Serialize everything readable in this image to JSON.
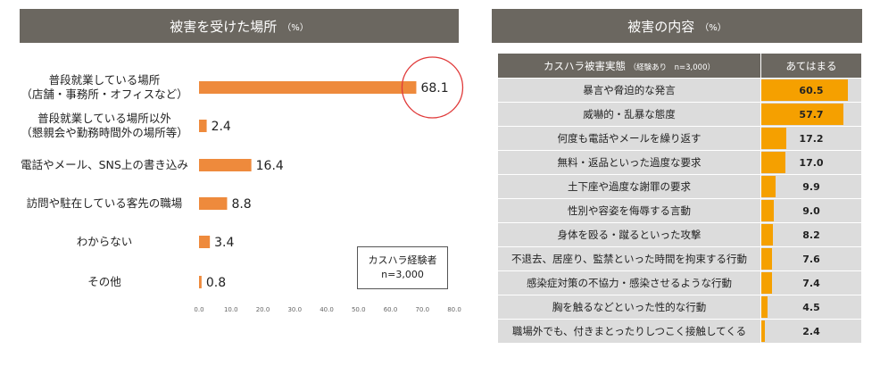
{
  "left_panel": {
    "title": "被害を受けた場所",
    "unit": "（%）"
  },
  "right_panel": {
    "title": "被害の内容",
    "unit": "（%）"
  },
  "legend": {
    "line1": "カスハラ経験者",
    "line2": "n=3,000"
  },
  "table_header": {
    "item": "カスハラ被害実態",
    "item_sub": "（経験あり　n=3,000）",
    "value": "あてはまる"
  },
  "colors": {
    "bar": "#ee8a3c",
    "table_bar": "#f5a000",
    "header": "#6b6760",
    "highlight_circle": "#e03a3a"
  },
  "chart_data": [
    {
      "type": "bar",
      "orientation": "horizontal",
      "categories": [
        [
          "普段就業している場所",
          "（店舗・事務所・オフィスなど）"
        ],
        [
          "普段就業している場所以外",
          "（懇親会や勤務時間外の場所等）"
        ],
        [
          "電話やメール、SNS上の書き込み"
        ],
        [
          "訪問や駐在している客先の職場"
        ],
        [
          "わからない"
        ],
        [
          "その他"
        ]
      ],
      "values": [
        68.1,
        2.4,
        16.4,
        8.8,
        3.4,
        0.8
      ],
      "value_labels": [
        "68.1",
        "2.4",
        "16.4",
        "8.8",
        "3.4",
        "0.8"
      ],
      "xlim": [
        0,
        80
      ],
      "ticks": [
        "0.0",
        "10.0",
        "20.0",
        "30.0",
        "40.0",
        "50.0",
        "60.0",
        "70.0",
        "80.0"
      ],
      "highlight_index": 0
    },
    {
      "type": "table",
      "rows": [
        {
          "label": "暴言や脅迫的な発言",
          "value": 60.5,
          "text": "60.5"
        },
        {
          "label": "威嚇的・乱暴な態度",
          "value": 57.7,
          "text": "57.7"
        },
        {
          "label": "何度も電話やメールを繰り返す",
          "value": 17.2,
          "text": "17.2"
        },
        {
          "label": "無料・返品といった過度な要求",
          "value": 17.0,
          "text": "17.0"
        },
        {
          "label": "土下座や過度な謝罪の要求",
          "value": 9.9,
          "text": "9.9"
        },
        {
          "label": "性別や容姿を侮辱する言動",
          "value": 9.0,
          "text": "9.0"
        },
        {
          "label": "身体を殴る・蹴るといった攻撃",
          "value": 8.2,
          "text": "8.2"
        },
        {
          "label": "不退去、居座り、監禁といった時間を拘束する行動",
          "value": 7.6,
          "text": "7.6"
        },
        {
          "label": "感染症対策の不協力・感染させるような行動",
          "value": 7.4,
          "text": "7.4"
        },
        {
          "label": "胸を触るなどといった性的な行動",
          "value": 4.5,
          "text": "4.5"
        },
        {
          "label": "職場外でも、付きまとったりしつこく接触してくる",
          "value": 2.4,
          "text": "2.4"
        }
      ]
    }
  ]
}
